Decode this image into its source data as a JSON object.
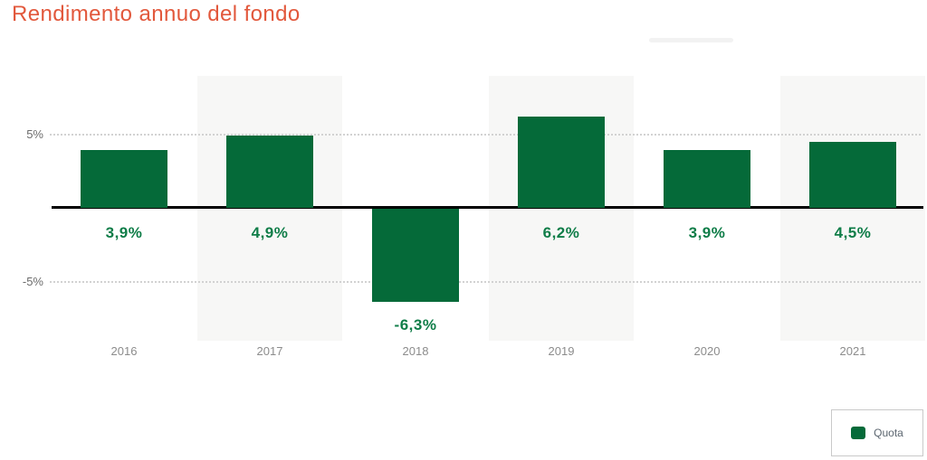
{
  "title": {
    "text": "Rendimento annuo del fondo"
  },
  "legend": {
    "label": "Quota",
    "position": "bottom-right"
  },
  "colors": {
    "title": "#e2583c",
    "bar": "#056a39",
    "value_label": "#0f7d48",
    "year_label": "#8c8c8c",
    "tick_label": "#6b6b6b",
    "band": "#f7f7f6",
    "gridline": "#d2d2d2",
    "zero_line": "#000000",
    "legend_border": "#c9c9c9",
    "legend_text": "#5c6670"
  },
  "chart_data": {
    "type": "bar",
    "title": "Rendimento annuo del fondo",
    "categories": [
      "2016",
      "2017",
      "2018",
      "2019",
      "2020",
      "2021"
    ],
    "series": [
      {
        "name": "Quota",
        "values": [
          3.9,
          4.9,
          -6.3,
          6.2,
          3.9,
          4.5
        ]
      }
    ],
    "value_labels": [
      "3,9%",
      "4,9%",
      "-6,3%",
      "6,2%",
      "3,9%",
      "4,5%"
    ],
    "xlabel": "",
    "ylabel": "",
    "y_ticks": [
      {
        "label": "5%",
        "value": 5
      },
      {
        "label": "-5%",
        "value": -5
      }
    ],
    "ylim": [
      -9,
      9.2
    ],
    "grid": "horizontal-dotted",
    "banded_categories": [
      "2017",
      "2019",
      "2021"
    ],
    "legend_position": "bottom-right"
  }
}
